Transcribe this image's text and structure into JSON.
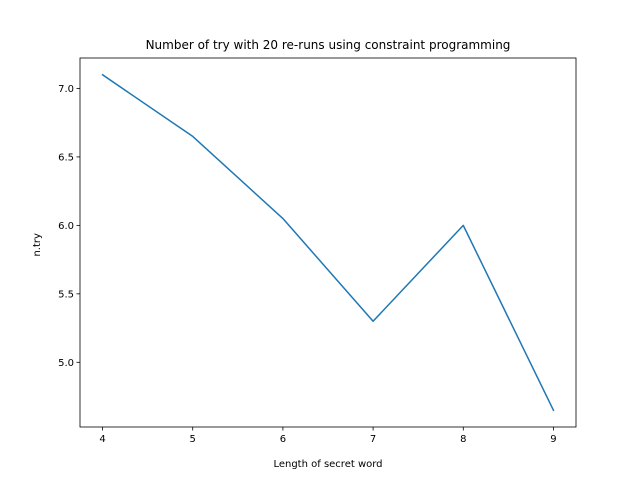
{
  "chart_data": {
    "type": "line",
    "title": "Number of try with 20 re-runs using constraint programming",
    "xlabel": "Length of secret word",
    "ylabel": "n.try",
    "x": [
      4,
      5,
      6,
      7,
      8,
      9
    ],
    "series": [
      {
        "values": [
          7.1,
          6.65,
          6.05,
          5.3,
          6.0,
          4.65
        ],
        "color": "#1f77b4"
      }
    ],
    "xlim": [
      3.75,
      9.25
    ],
    "ylim": [
      4.5275,
      7.2225
    ],
    "xticks": [
      4,
      5,
      6,
      7,
      8,
      9
    ],
    "xtick_labels": [
      "4",
      "5",
      "6",
      "7",
      "8",
      "9"
    ],
    "yticks": [
      5.0,
      5.5,
      6.0,
      6.5,
      7.0
    ],
    "ytick_labels": [
      "5.0",
      "5.5",
      "6.0",
      "6.5",
      "7.0"
    ],
    "grid": false,
    "legend": "none"
  }
}
